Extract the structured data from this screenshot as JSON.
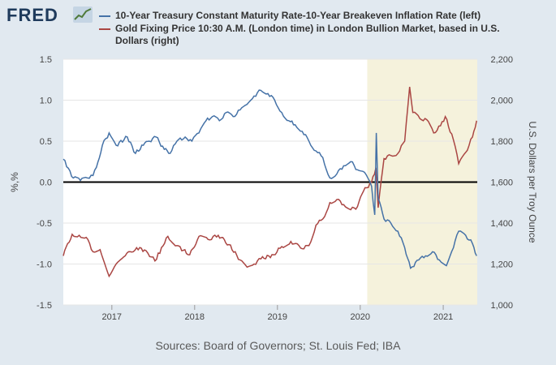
{
  "header": {
    "logo_text": "FRED",
    "logo_icon": "fred-chart-logo-icon"
  },
  "source": "Sources: Board of Governors; St. Louis Fed; IBA",
  "colors": {
    "series_left": "#4572a7",
    "series_right": "#aa4643",
    "recession": "#f5f2dc",
    "plot_bg": "#ffffff",
    "page_bg": "#e1e9f0"
  },
  "chart_data": {
    "type": "line",
    "title": "",
    "series": [
      {
        "name": "10-Year Treasury Constant Maturity Rate-10-Year Breakeven Inflation Rate (left)",
        "axis": "left",
        "color": "#4572a7",
        "points": [
          [
            "2016-06-01",
            0.28
          ],
          [
            "2016-07-15",
            0.05
          ],
          [
            "2016-08-15",
            0.02
          ],
          [
            "2016-09-15",
            0.05
          ],
          [
            "2016-10-10",
            0.08
          ],
          [
            "2016-10-25",
            0.18
          ],
          [
            "2016-11-20",
            0.45
          ],
          [
            "2016-12-20",
            0.6
          ],
          [
            "2017-01-20",
            0.45
          ],
          [
            "2017-03-10",
            0.55
          ],
          [
            "2017-04-15",
            0.35
          ],
          [
            "2017-05-20",
            0.45
          ],
          [
            "2017-06-15",
            0.5
          ],
          [
            "2017-07-15",
            0.55
          ],
          [
            "2017-08-20",
            0.4
          ],
          [
            "2017-09-15",
            0.35
          ],
          [
            "2017-10-15",
            0.5
          ],
          [
            "2017-11-20",
            0.55
          ],
          [
            "2017-12-20",
            0.5
          ],
          [
            "2018-01-20",
            0.6
          ],
          [
            "2018-02-20",
            0.75
          ],
          [
            "2018-03-20",
            0.8
          ],
          [
            "2018-04-20",
            0.75
          ],
          [
            "2018-05-20",
            0.85
          ],
          [
            "2018-06-20",
            0.8
          ],
          [
            "2018-07-20",
            0.88
          ],
          [
            "2018-08-20",
            0.95
          ],
          [
            "2018-09-20",
            1.05
          ],
          [
            "2018-10-20",
            1.12
          ],
          [
            "2018-11-20",
            1.08
          ],
          [
            "2018-12-20",
            1.0
          ],
          [
            "2019-01-20",
            0.85
          ],
          [
            "2019-02-20",
            0.75
          ],
          [
            "2019-03-20",
            0.7
          ],
          [
            "2019-04-20",
            0.62
          ],
          [
            "2019-05-20",
            0.5
          ],
          [
            "2019-06-20",
            0.38
          ],
          [
            "2019-07-20",
            0.3
          ],
          [
            "2019-08-20",
            0.05
          ],
          [
            "2019-09-20",
            0.1
          ],
          [
            "2019-10-20",
            0.2
          ],
          [
            "2019-11-20",
            0.25
          ],
          [
            "2019-12-20",
            0.15
          ],
          [
            "2020-01-20",
            0.12
          ],
          [
            "2020-02-20",
            -0.05
          ],
          [
            "2020-03-05",
            -0.4
          ],
          [
            "2020-03-12",
            0.6
          ],
          [
            "2020-03-20",
            -0.2
          ],
          [
            "2020-04-15",
            -0.45
          ],
          [
            "2020-05-15",
            -0.5
          ],
          [
            "2020-06-15",
            -0.6
          ],
          [
            "2020-07-15",
            -0.8
          ],
          [
            "2020-08-10",
            -1.05
          ],
          [
            "2020-09-15",
            -0.95
          ],
          [
            "2020-10-15",
            -0.9
          ],
          [
            "2020-11-15",
            -0.85
          ],
          [
            "2020-12-15",
            -0.95
          ],
          [
            "2021-01-15",
            -1.02
          ],
          [
            "2021-02-15",
            -0.8
          ],
          [
            "2021-03-10",
            -0.6
          ],
          [
            "2021-04-10",
            -0.65
          ],
          [
            "2021-05-10",
            -0.75
          ],
          [
            "2021-05-28",
            -0.9
          ]
        ]
      },
      {
        "name": "Gold Fixing Price 10:30 A.M. (London time) in London Bullion Market, based in U.S. Dollars (right)",
        "axis": "right",
        "color": "#aa4643",
        "points": [
          [
            "2016-06-01",
            1240
          ],
          [
            "2016-06-20",
            1300
          ],
          [
            "2016-07-10",
            1345
          ],
          [
            "2016-08-10",
            1340
          ],
          [
            "2016-09-10",
            1330
          ],
          [
            "2016-10-10",
            1260
          ],
          [
            "2016-11-10",
            1270
          ],
          [
            "2016-12-20",
            1140
          ],
          [
            "2017-01-20",
            1200
          ],
          [
            "2017-03-01",
            1240
          ],
          [
            "2017-04-20",
            1280
          ],
          [
            "2017-06-01",
            1265
          ],
          [
            "2017-07-10",
            1215
          ],
          [
            "2017-09-05",
            1335
          ],
          [
            "2017-10-15",
            1290
          ],
          [
            "2017-12-10",
            1245
          ],
          [
            "2018-01-20",
            1335
          ],
          [
            "2018-03-01",
            1320
          ],
          [
            "2018-04-15",
            1340
          ],
          [
            "2018-06-01",
            1295
          ],
          [
            "2018-07-20",
            1220
          ],
          [
            "2018-08-20",
            1185
          ],
          [
            "2018-09-20",
            1200
          ],
          [
            "2018-10-20",
            1225
          ],
          [
            "2018-12-15",
            1245
          ],
          [
            "2019-01-20",
            1285
          ],
          [
            "2019-03-01",
            1310
          ],
          [
            "2019-04-20",
            1275
          ],
          [
            "2019-05-20",
            1290
          ],
          [
            "2019-06-20",
            1390
          ],
          [
            "2019-07-20",
            1420
          ],
          [
            "2019-08-20",
            1500
          ],
          [
            "2019-09-20",
            1515
          ],
          [
            "2019-10-20",
            1490
          ],
          [
            "2019-11-20",
            1465
          ],
          [
            "2019-12-20",
            1480
          ],
          [
            "2020-01-15",
            1555
          ],
          [
            "2020-02-20",
            1600
          ],
          [
            "2020-03-10",
            1670
          ],
          [
            "2020-03-20",
            1475
          ],
          [
            "2020-04-15",
            1715
          ],
          [
            "2020-05-15",
            1730
          ],
          [
            "2020-06-15",
            1740
          ],
          [
            "2020-07-15",
            1800
          ],
          [
            "2020-08-06",
            2065
          ],
          [
            "2020-08-20",
            1940
          ],
          [
            "2020-09-20",
            1910
          ],
          [
            "2020-10-20",
            1905
          ],
          [
            "2020-11-20",
            1840
          ],
          [
            "2020-12-20",
            1875
          ],
          [
            "2021-01-10",
            1920
          ],
          [
            "2021-02-15",
            1805
          ],
          [
            "2021-03-10",
            1690
          ],
          [
            "2021-04-10",
            1745
          ],
          [
            "2021-05-10",
            1820
          ],
          [
            "2021-05-28",
            1900
          ]
        ]
      }
    ],
    "x_axis": {
      "type": "date",
      "range": [
        "2016-06-01",
        "2021-05-31"
      ],
      "ticks": [
        "2017",
        "2018",
        "2019",
        "2020",
        "2021"
      ]
    },
    "y_left": {
      "label": "%,%",
      "ylim": [
        -1.5,
        1.5
      ],
      "ticks": [
        1.5,
        1.0,
        0.5,
        0.0,
        -0.5,
        -1.0,
        -1.5
      ],
      "tick_labels": [
        "1.5",
        "1.0",
        "0.5",
        "0.0",
        "-0.5",
        "-1.0",
        "-1.5"
      ]
    },
    "y_right": {
      "label": "U.S. Dollars per Troy Ounce",
      "ylim": [
        1000,
        2200
      ],
      "ticks": [
        2200,
        2000,
        1800,
        1600,
        1400,
        1200,
        1000
      ],
      "tick_labels": [
        "2,200",
        "2,000",
        "1,800",
        "1,600",
        "1,400",
        "1,200",
        "1,000"
      ]
    },
    "recession_shading": {
      "start": "2020-02-01",
      "end": "2021-05-31"
    },
    "zero_line": true,
    "grid": "horizontal",
    "legend_position": "top"
  }
}
